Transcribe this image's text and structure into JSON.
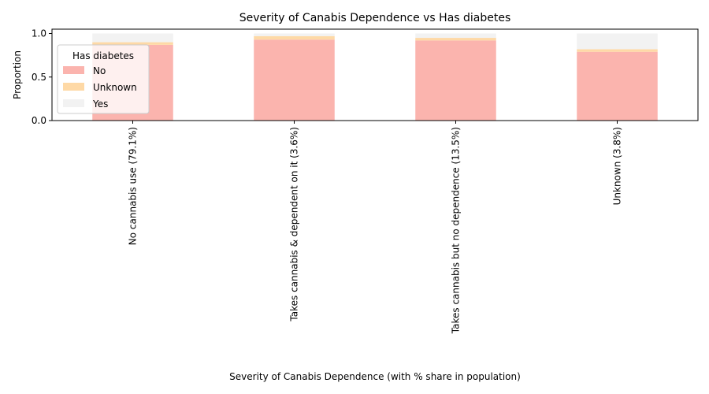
{
  "chart_data": {
    "type": "bar",
    "stacked": true,
    "title": "Severity of Canabis Dependence vs Has diabetes",
    "xlabel": "Severity of Canabis Dependence (with % share in population)",
    "ylabel": "Proportion",
    "ylim": [
      0,
      1.05
    ],
    "yticks": [
      "0.0",
      "0.5",
      "1.0"
    ],
    "ytick_values": [
      0,
      0.5,
      1.0
    ],
    "categories": [
      "No cannabis use (79.1%)",
      "Takes cannabis & dependent on it (3.6%)",
      "Takes cannabis but no dependence (13.5%)",
      "Unknown (3.8%)"
    ],
    "series": [
      {
        "name": "No",
        "color": "#fbb4ae",
        "values": [
          0.87,
          0.93,
          0.92,
          0.79
        ]
      },
      {
        "name": "Unknown",
        "color": "#fed9a6",
        "values": [
          0.03,
          0.04,
          0.03,
          0.03
        ]
      },
      {
        "name": "Yes",
        "color": "#f2f2f2",
        "values": [
          0.1,
          0.03,
          0.05,
          0.18
        ]
      }
    ],
    "legend": {
      "title": "Has diabetes",
      "placement": "upper-left"
    },
    "grid": false
  }
}
